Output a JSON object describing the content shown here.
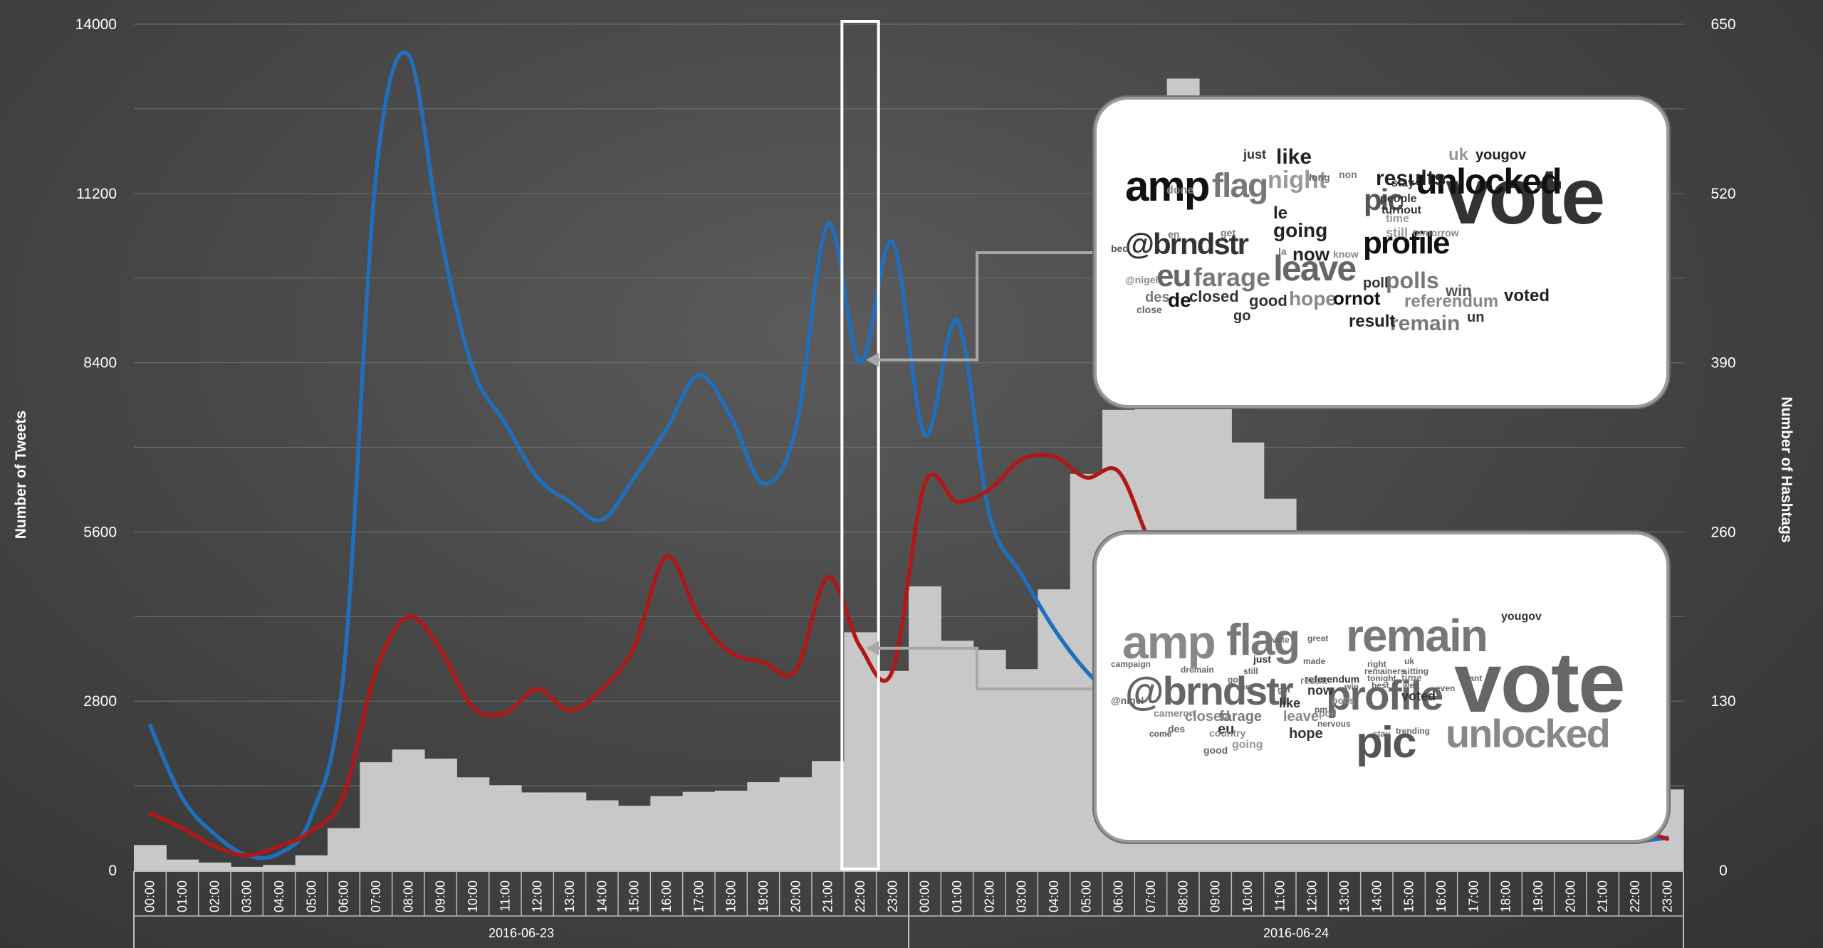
{
  "chart_data": {
    "type": "bar",
    "title": "",
    "ylabel": "Number of Tweets",
    "y2label": "Number of Hashtags",
    "ylim": [
      0,
      14000
    ],
    "y2lim": [
      0,
      650
    ],
    "yticks": [
      "0",
      "2800",
      "5600",
      "8400",
      "11200",
      "14000"
    ],
    "y2ticks": [
      "0",
      "130",
      "260",
      "390",
      "520",
      "650"
    ],
    "grid": true,
    "categories": [
      "00:00",
      "01:00",
      "02:00",
      "03:00",
      "04:00",
      "05:00",
      "06:00",
      "07:00",
      "08:00",
      "09:00",
      "10:00",
      "11:00",
      "12:00",
      "13:00",
      "14:00",
      "15:00",
      "16:00",
      "17:00",
      "18:00",
      "19:00",
      "20:00",
      "21:00",
      "22:00",
      "23:00",
      "00:00",
      "01:00",
      "02:00",
      "03:00",
      "04:00",
      "05:00",
      "06:00",
      "07:00",
      "08:00",
      "09:00",
      "10:00",
      "11:00",
      "12:00",
      "13:00",
      "14:00",
      "15:00",
      "16:00",
      "17:00",
      "18:00",
      "19:00",
      "20:00",
      "21:00",
      "22:00",
      "23:00"
    ],
    "date_groups": [
      {
        "label": "2016-06-23",
        "start": 0,
        "end": 23
      },
      {
        "label": "2016-06-24",
        "start": 24,
        "end": 47
      }
    ],
    "highlight_index": 22,
    "series": [
      {
        "type": "bar",
        "color": "#c8c8c8",
        "values": [
          420,
          180,
          130,
          60,
          90,
          250,
          700,
          1790,
          2000,
          1850,
          1540,
          1410,
          1290,
          1290,
          1160,
          1070,
          1230,
          1300,
          1320,
          1460,
          1540,
          1810,
          3940,
          3300,
          4700,
          3800,
          3650,
          3330,
          4650,
          6560,
          7620,
          8600,
          13100,
          11600,
          7080,
          6150,
          5540,
          2900,
          2700,
          2600,
          2500,
          2400,
          2300,
          2200,
          2100,
          1800,
          1500,
          1340
        ]
      },
      {
        "type": "line",
        "color": "#1f6fbd",
        "values": [
          2400,
          1200,
          600,
          250,
          280,
          900,
          3300,
          11500,
          13500,
          10500,
          8300,
          7400,
          6500,
          6100,
          5800,
          6500,
          7300,
          8200,
          7500,
          6400,
          7300,
          10700,
          8400,
          10400,
          7200,
          9100,
          5900,
          4900,
          4000,
          3300,
          2800,
          2400,
          2000,
          1700,
          1500,
          1350,
          1200,
          1100,
          1000,
          900,
          820,
          750,
          680,
          620,
          560,
          510,
          480,
          540
        ]
      },
      {
        "type": "line",
        "color": "#b01818",
        "values": [
          950,
          700,
          400,
          250,
          400,
          650,
          1250,
          3300,
          4200,
          3650,
          2700,
          2600,
          3000,
          2650,
          3000,
          3700,
          5200,
          4200,
          3600,
          3450,
          3300,
          4850,
          3700,
          3300,
          6400,
          6100,
          6300,
          6800,
          6850,
          6500,
          6600,
          5400,
          4500,
          3900,
          3400,
          3000,
          2700,
          2400,
          2200,
          2000,
          1800,
          1600,
          1400,
          1200,
          1000,
          850,
          700,
          520
        ]
      }
    ]
  },
  "wordclouds": [
    {
      "words": [
        {
          "t": "vote",
          "c": "#333333"
        },
        {
          "t": "amp",
          "c": "#111111"
        },
        {
          "t": "unlocked",
          "c": "#111111"
        },
        {
          "t": "@brndstr",
          "c": "#333333"
        },
        {
          "t": "profile",
          "c": "#111111"
        },
        {
          "t": "leave",
          "c": "#666666"
        },
        {
          "t": "eu",
          "c": "#666666"
        },
        {
          "t": "flag",
          "c": "#777777"
        },
        {
          "t": "pic",
          "c": "#555555"
        },
        {
          "t": "farage",
          "c": "#777777"
        },
        {
          "t": "results",
          "c": "#222222"
        },
        {
          "t": "night",
          "c": "#999999"
        },
        {
          "t": "polls",
          "c": "#777777"
        },
        {
          "t": "going",
          "c": "#222222"
        },
        {
          "t": "like",
          "c": "#222222"
        },
        {
          "t": "now",
          "c": "#222222"
        },
        {
          "t": "hope",
          "c": "#888888"
        },
        {
          "t": "ornot",
          "c": "#111111"
        },
        {
          "t": "remain",
          "c": "#777777"
        },
        {
          "t": "referendum",
          "c": "#888888"
        },
        {
          "t": "result",
          "c": "#222222"
        },
        {
          "t": "voted",
          "c": "#222222"
        },
        {
          "t": "de",
          "c": "#111111"
        },
        {
          "t": "closed",
          "c": "#333333"
        },
        {
          "t": "good",
          "c": "#333333"
        },
        {
          "t": "le",
          "c": "#222222"
        },
        {
          "t": "win",
          "c": "#555555"
        },
        {
          "t": "uk",
          "c": "#999999"
        },
        {
          "t": "yougov",
          "c": "#222222"
        },
        {
          "t": "just",
          "c": "#333333"
        },
        {
          "t": "poll",
          "c": "#333333"
        },
        {
          "t": "un",
          "c": "#333333"
        },
        {
          "t": "go",
          "c": "#333333"
        },
        {
          "t": "des",
          "c": "#777777"
        },
        {
          "t": "still",
          "c": "#999999"
        },
        {
          "t": "turnout",
          "c": "#333333"
        },
        {
          "t": "people",
          "c": "#333333"
        },
        {
          "t": "stay",
          "c": "#333333"
        },
        {
          "t": "time",
          "c": "#999999"
        },
        {
          "t": "tomorrow",
          "c": "#888888"
        },
        {
          "t": "long",
          "c": "#666666"
        },
        {
          "t": "non",
          "c": "#777777"
        },
        {
          "t": "done",
          "c": "#888888"
        },
        {
          "t": "get",
          "c": "#777777"
        },
        {
          "t": "en",
          "c": "#777777"
        },
        {
          "t": "bed",
          "c": "#555555"
        },
        {
          "t": "la",
          "c": "#777777"
        },
        {
          "t": "know",
          "c": "#888888"
        },
        {
          "t": "@nigel",
          "c": "#888888"
        },
        {
          "t": "close",
          "c": "#666666"
        }
      ]
    },
    {
      "words": [
        {
          "t": "vote",
          "c": "#666666"
        },
        {
          "t": "remain",
          "c": "#777777"
        },
        {
          "t": "profile",
          "c": "#666666"
        },
        {
          "t": "amp",
          "c": "#888888"
        },
        {
          "t": "@brndstr",
          "c": "#666666"
        },
        {
          "t": "unlocked",
          "c": "#888888"
        },
        {
          "t": "flag",
          "c": "#777777"
        },
        {
          "t": "pic",
          "c": "#555555"
        },
        {
          "t": "farage",
          "c": "#777777"
        },
        {
          "t": "leave",
          "c": "#888888"
        },
        {
          "t": "closed",
          "c": "#888888"
        },
        {
          "t": "eu",
          "c": "#333333"
        },
        {
          "t": "hope",
          "c": "#333333"
        },
        {
          "t": "going",
          "c": "#999999"
        },
        {
          "t": "like",
          "c": "#333333"
        },
        {
          "t": "now",
          "c": "#333333"
        },
        {
          "t": "voted",
          "c": "#333333"
        },
        {
          "t": "des",
          "c": "#666666"
        },
        {
          "t": "cameron",
          "c": "#888888"
        },
        {
          "t": "referendum",
          "c": "#333333"
        },
        {
          "t": "yougov",
          "c": "#333333"
        },
        {
          "t": "polls",
          "c": "#888888"
        },
        {
          "t": "result",
          "c": "#888888"
        },
        {
          "t": "just",
          "c": "#333333"
        },
        {
          "t": "time",
          "c": "#888888"
        },
        {
          "t": "good",
          "c": "#666666"
        },
        {
          "t": "country",
          "c": "#888888"
        },
        {
          "t": "come",
          "c": "#555555"
        },
        {
          "t": "@nigel",
          "c": "#666666"
        },
        {
          "t": "poll",
          "c": "#888888"
        },
        {
          "t": "nervous",
          "c": "#666666"
        },
        {
          "t": "campaign",
          "c": "#666666"
        },
        {
          "t": "dremain",
          "c": "#666666"
        },
        {
          "t": "still",
          "c": "#666666"
        },
        {
          "t": "trending",
          "c": "#666666"
        },
        {
          "t": "stay",
          "c": "#666666"
        },
        {
          "t": "want",
          "c": "#666666"
        },
        {
          "t": "vote",
          "c": "#666666"
        },
        {
          "t": "made",
          "c": "#666666"
        },
        {
          "t": "great",
          "c": "#666666"
        },
        {
          "t": "right",
          "c": "#666666"
        },
        {
          "t": "uk",
          "c": "#666666"
        },
        {
          "t": "sitting",
          "c": "#666666"
        },
        {
          "t": "remainers",
          "c": "#666666"
        },
        {
          "t": "tonight",
          "c": "#666666"
        },
        {
          "t": "get",
          "c": "#666666"
        },
        {
          "t": "pm",
          "c": "#666666"
        },
        {
          "t": "win",
          "c": "#666666"
        },
        {
          "t": "go",
          "c": "#666666"
        },
        {
          "t": "see",
          "c": "#666666"
        },
        {
          "t": "best",
          "c": "#666666"
        },
        {
          "t": "well",
          "c": "#666666"
        },
        {
          "t": "even",
          "c": "#666666"
        }
      ]
    }
  ]
}
